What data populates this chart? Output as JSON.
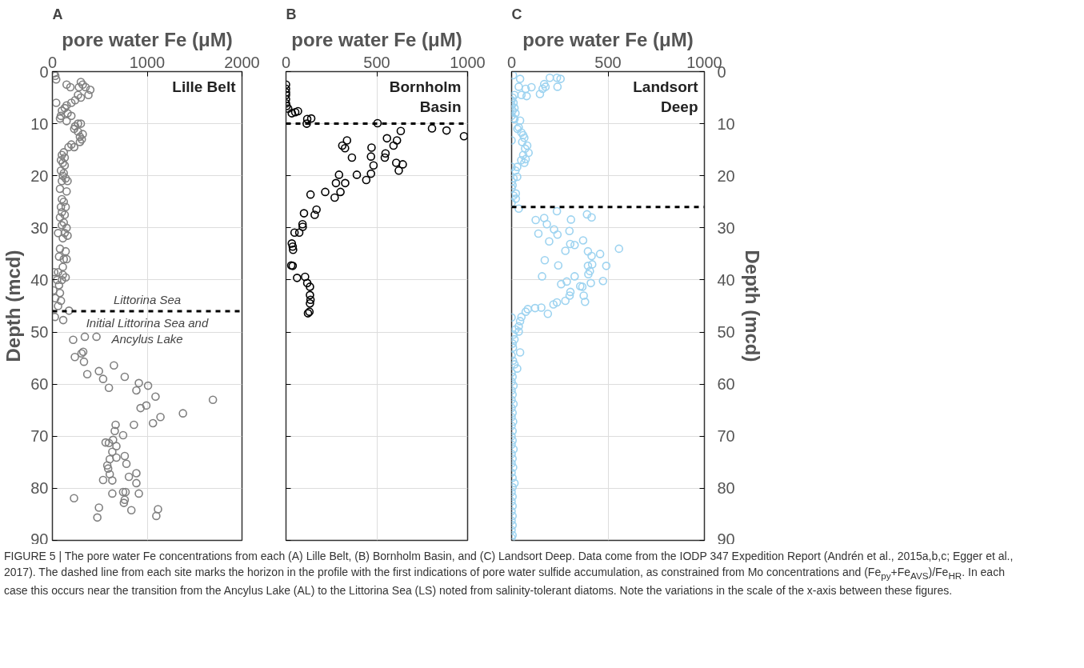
{
  "chart_data": [
    {
      "type": "scatter",
      "title": "A",
      "subtitle": "Lille Belt",
      "xlabel": "pore water Fe (μM)",
      "ylabel": "Depth (mcd)",
      "xlim": [
        0,
        2000
      ],
      "xticks": [
        0,
        1000,
        2000
      ],
      "ylim": [
        90,
        0
      ],
      "yticks": [
        0,
        10,
        20,
        30,
        40,
        50,
        60,
        70,
        80,
        90
      ],
      "grid": true,
      "marker": "circle",
      "ref_lines": [
        {
          "axis": "y",
          "value": 46,
          "label": "Littorina Sea",
          "color": "#000000",
          "line_style": "dashed"
        }
      ],
      "annotations": [
        "Initial Littorina Sea and\nAncylus Lake",
        "FIGURE 5 | The pore water Fe concentrations from each (A) Lille Belt, (B) Bornholm Basin, and (C) Landsort Deep. Data come from the IODP 347 Expedition Report (Andrén et al., 2015a,b,c; Egger et al., 2017). The dashed line from each site marks the horizon in the profile with the first indications of pore water sulfide accumulation, as constrained from Mo concentrations and (Fe$_{py}$+Fe$_{AVS}$)/Fe$_{HR}$. In each case this occurs near the transition from the Ancylus Lake (AL) to the Littorina Sea (LS) noted from salinity-tolerant diatoms. Note the variations in the scale of the x-axis between these figures."
      ],
      "series": [
        {
          "color": "#808080",
          "x": [
            20,
            30,
            40,
            300,
            320,
            280,
            350,
            150,
            190,
            400,
            380,
            270,
            300,
            240,
            40,
            200,
            150,
            130,
            100,
            160,
            90,
            200,
            80,
            150,
            270,
            240,
            300,
            230,
            270,
            320,
            290,
            310,
            290,
            200,
            170,
            230,
            120,
            100,
            130,
            90,
            110,
            130,
            90,
            120,
            110,
            140,
            100,
            160,
            80,
            150,
            100,
            120,
            90,
            140,
            100,
            130,
            80,
            120,
            100,
            150,
            60,
            130,
            110,
            160,
            80,
            140,
            70,
            120,
            150,
            110,
            60,
            110,
            140,
            100,
            20,
            50,
            70,
            10,
            80,
            30,
            90,
            60,
            175,
            26,
            114,
            219,
            342,
            465,
            237,
            307,
            325,
            333,
            368,
            491,
            535,
            649,
            596,
            763,
            912,
            1009,
            886,
            1088,
            1693,
            991,
            930,
            1377,
            1140,
            1061,
            860,
            667,
            658,
            746,
            561,
            596,
            640,
            675,
            632,
            763,
            675,
            605,
            781,
            579,
            588,
            605,
            886,
            807,
            535,
            632,
            886,
            746,
            772,
            912,
            632,
            228,
            763,
            754,
            491,
            833,
            1114,
            1096,
            474
          ],
          "values": [
            0.3,
            0.8,
            1.5,
            2,
            2.5,
            3,
            3,
            2.5,
            3,
            3.5,
            4.5,
            4.5,
            5,
            5.5,
            6,
            6,
            6.5,
            7,
            7.5,
            8,
            8.5,
            8.5,
            9,
            9.5,
            10,
            10.5,
            10,
            11,
            11.5,
            12,
            12.5,
            13,
            13.5,
            14,
            14.5,
            14.5,
            15.5,
            16,
            16.5,
            17,
            17.5,
            18,
            19,
            19.5,
            20,
            20.5,
            21,
            21,
            22.5,
            23,
            24.5,
            25,
            26,
            26,
            27,
            27.5,
            28,
            29,
            29.5,
            30,
            31,
            31,
            32,
            31.5,
            34,
            34.5,
            35.5,
            36,
            36,
            37.5,
            38.5,
            39,
            39.5,
            40,
            38.5,
            40,
            41,
            42,
            42.5,
            43.5,
            44,
            45,
            45.9,
            47.1,
            47.7,
            51.5,
            50.9,
            50.9,
            54.8,
            54.1,
            53.8,
            55.7,
            58.1,
            57.5,
            59.0,
            56.4,
            60.7,
            58.6,
            59.8,
            60.3,
            61.2,
            62.4,
            63.0,
            64.1,
            64.6,
            65.6,
            66.3,
            67.5,
            67.8,
            67.8,
            69.0,
            69.8,
            71.2,
            71.3,
            70.7,
            71.9,
            73.0,
            73.8,
            74.1,
            74.4,
            75.3,
            75.6,
            76.2,
            77.3,
            77.1,
            77.8,
            78.4,
            78.5,
            79.0,
            80.7,
            80.7,
            81.0,
            81.0,
            81.9,
            82.2,
            82.8,
            83.7,
            84.2,
            84.0,
            85.3,
            85.6
          ]
        }
      ]
    },
    {
      "type": "scatter",
      "title": "B",
      "subtitle": "Bornholm\nBasin",
      "xlabel": "pore water Fe (μM)",
      "xlim": [
        0,
        1000
      ],
      "xticks": [
        0,
        500,
        1000
      ],
      "ylim": [
        90,
        0
      ],
      "yticks": [
        0,
        10,
        20,
        30,
        40,
        50,
        60,
        70,
        80,
        90
      ],
      "grid": true,
      "marker": "circle",
      "tick_labels": "x",
      "ref_lines": [
        {
          "axis": "y",
          "value": 10,
          "color": "#000000",
          "line_style": "dashed"
        }
      ],
      "series": [
        {
          "color": "#000000",
          "x": [
            0,
            0,
            0,
            0,
            0,
            0,
            3,
            12,
            32,
            51,
            66,
            117,
            139,
            114,
            504,
            804,
            884,
            980,
            632,
            556,
            611,
            592,
            336,
            310,
            325,
            471,
            363,
            468,
            548,
            544,
            607,
            643,
            621,
            482,
            468,
            442,
            390,
            292,
            275,
            326,
            300,
            268,
            216,
            135,
            168,
            158,
            99,
            91,
            92,
            73,
            47,
            32,
            37,
            39,
            29,
            37,
            61,
            105,
            117,
            132,
            132,
            135,
            132,
            129,
            121
          ],
          "values": [
            2.5,
            3.3,
            4.0,
            4.5,
            5.3,
            6.1,
            6.6,
            7.1,
            8.0,
            7.8,
            7.6,
            9.1,
            9.0,
            10.0,
            9.9,
            10.9,
            11.3,
            12.4,
            11.4,
            12.8,
            13.2,
            14.2,
            13.2,
            14.2,
            14.7,
            14.6,
            16.5,
            16.3,
            15.7,
            16.5,
            17.5,
            17.8,
            19.0,
            18.0,
            19.6,
            20.8,
            19.8,
            19.8,
            21.4,
            21.4,
            23.1,
            24.2,
            23.1,
            23.6,
            26.5,
            27.5,
            27.2,
            29.3,
            29.8,
            30.9,
            30.9,
            33.0,
            33.6,
            34.2,
            37.2,
            37.3,
            39.6,
            39.4,
            40.6,
            41.3,
            42.9,
            43.8,
            44.5,
            46.1,
            46.4
          ]
        }
      ]
    },
    {
      "type": "scatter",
      "title": "C",
      "subtitle": "Landsort\nDeep",
      "xlabel": "pore water Fe (μM)",
      "ylabel": "Depth (mcd)",
      "xlim": [
        0,
        1000
      ],
      "xticks": [
        0,
        500,
        1000
      ],
      "ylim": [
        90,
        0
      ],
      "yticks": [
        0,
        10,
        20,
        30,
        40,
        50,
        60,
        70,
        80,
        90
      ],
      "grid": true,
      "marker": "circle",
      "ref_lines": [
        {
          "axis": "y",
          "value": 26,
          "color": "#000000",
          "line_style": "dashed"
        }
      ],
      "series": [
        {
          "color": "#9dd3f0",
          "x": [
            7,
            44,
            198,
            235,
            254,
            238,
            169,
            176,
            161,
            103,
            73,
            37,
            147,
            78,
            51,
            15,
            5,
            0,
            10,
            0,
            15,
            5,
            20,
            0,
            10,
            15,
            44,
            37,
            30,
            51,
            60,
            0,
            66,
            55,
            81,
            70,
            88,
            60,
            73,
            50,
            66,
            29,
            0,
            20,
            29,
            10,
            0,
            5,
            0,
            22,
            10,
            22,
            0,
            37,
            235,
            391,
            415,
            125,
            169,
            308,
            183,
            220,
            300,
            139,
            238,
            195,
            371,
            304,
            327,
            279,
            396,
            459,
            557,
            415,
            172,
            242,
            396,
            418,
            491,
            406,
            398,
            158,
            327,
            257,
            286,
            411,
            474,
            356,
            367,
            305,
            301,
            279,
            374,
            381,
            217,
            235,
            154,
            122,
            84,
            73,
            188,
            0,
            51,
            44,
            37,
            20,
            37,
            10,
            15,
            5,
            7,
            44,
            0,
            7,
            15,
            29,
            0,
            5,
            0,
            10,
            0,
            5,
            0,
            10,
            0,
            5,
            0,
            8,
            0,
            5,
            0,
            5,
            0,
            10,
            0,
            5,
            0,
            8,
            0,
            5,
            15,
            5,
            0,
            5,
            0,
            5,
            0,
            5,
            0,
            5,
            0,
            5,
            0
          ],
          "values": [
            0.7,
            1.4,
            1.2,
            1.2,
            1.4,
            2.9,
            2.4,
            2.9,
            3.3,
            3.0,
            3.3,
            2.9,
            4.3,
            4.7,
            4.5,
            4.5,
            5,
            5.5,
            6,
            6.5,
            7,
            7.5,
            8,
            8.5,
            9,
            9.1,
            9.4,
            10.7,
            11,
            11.7,
            12.2,
            13.2,
            12.7,
            13.5,
            14.2,
            14.8,
            15.6,
            16,
            16.8,
            17,
            17.5,
            18.3,
            18.3,
            19,
            20.2,
            20.5,
            21.1,
            21.8,
            22.4,
            23.4,
            23.8,
            24.4,
            25.2,
            26.3,
            26.8,
            27.4,
            28.0,
            28.5,
            28.1,
            28.4,
            29.3,
            30.3,
            30.6,
            31.1,
            31.3,
            32.6,
            32.4,
            33.1,
            33.3,
            34.4,
            34.5,
            35.0,
            34.0,
            35.4,
            36.2,
            37.2,
            37.3,
            37.0,
            37.3,
            38.3,
            38.9,
            39.3,
            39.3,
            40.8,
            40.3,
            40.6,
            40.2,
            41.2,
            41.3,
            42.3,
            43.0,
            44.0,
            43.0,
            44.2,
            44.7,
            44.3,
            45.3,
            45.4,
            45.6,
            46.1,
            46.5,
            47.2,
            47.1,
            47.9,
            48.9,
            49.5,
            49.9,
            50.5,
            51.4,
            52.2,
            53,
            53.9,
            54.5,
            55.5,
            56.2,
            57.0,
            57.8,
            58.6,
            59.5,
            60.3,
            61.2,
            62,
            63,
            63.8,
            64.6,
            65.5,
            66.3,
            67.2,
            68,
            69,
            70,
            70.8,
            71.6,
            72.5,
            73.4,
            74.3,
            75.2,
            76,
            77,
            78,
            79,
            79.8,
            80.7,
            81.6,
            82.5,
            83.4,
            84.4,
            85.3,
            86.2,
            87.1,
            88,
            89,
            89.5
          ]
        }
      ]
    }
  ]
}
